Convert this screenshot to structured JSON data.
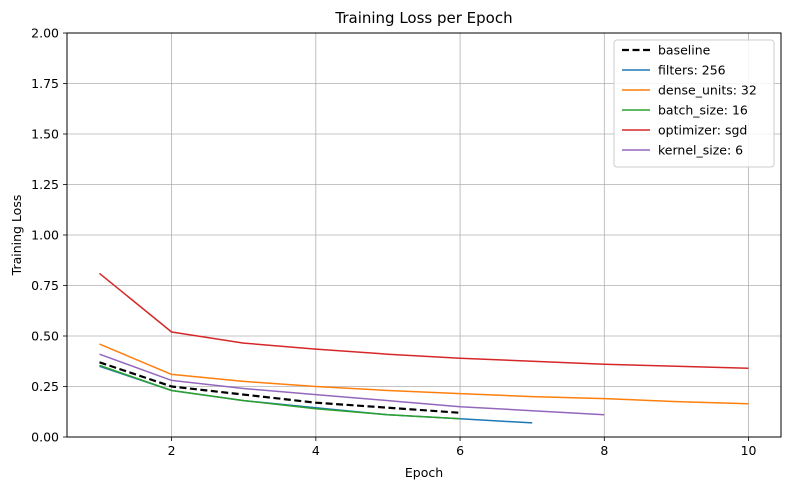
{
  "chart_data": {
    "type": "line",
    "title": "Training Loss per Epoch",
    "xlabel": "Epoch",
    "ylabel": "Training Loss",
    "xlim": [
      0.55,
      10.45
    ],
    "ylim": [
      0,
      2.0
    ],
    "xticks": [
      2,
      4,
      6,
      8,
      10
    ],
    "yticks": [
      0.0,
      0.25,
      0.5,
      0.75,
      1.0,
      1.25,
      1.5,
      1.75,
      2.0
    ],
    "xtick_labels": [
      "2",
      "4",
      "6",
      "8",
      "10"
    ],
    "ytick_labels": [
      "0.00",
      "0.25",
      "0.50",
      "0.75",
      "1.00",
      "1.25",
      "1.50",
      "1.75",
      "2.00"
    ],
    "grid": true,
    "legend_position": "top-right",
    "series": [
      {
        "name": "baseline",
        "color": "#000000",
        "dashed": true,
        "x": [
          1,
          2,
          3,
          4,
          5,
          6
        ],
        "y": [
          0.37,
          0.25,
          0.21,
          0.17,
          0.145,
          0.12
        ]
      },
      {
        "name": "filters: 256",
        "color": "#1f77b4",
        "dashed": false,
        "x": [
          1,
          2,
          3,
          4,
          5,
          6,
          7
        ],
        "y": [
          0.35,
          0.23,
          0.18,
          0.145,
          0.11,
          0.09,
          0.07
        ]
      },
      {
        "name": "dense_units: 32",
        "color": "#ff7f0e",
        "dashed": false,
        "x": [
          1,
          2,
          3,
          4,
          5,
          6,
          7,
          8,
          9,
          10
        ],
        "y": [
          0.46,
          0.31,
          0.275,
          0.25,
          0.23,
          0.215,
          0.2,
          0.19,
          0.175,
          0.165
        ]
      },
      {
        "name": "batch_size: 16",
        "color": "#2ca02c",
        "dashed": false,
        "x": [
          1,
          2,
          3,
          4,
          5,
          6
        ],
        "y": [
          0.355,
          0.23,
          0.18,
          0.14,
          0.11,
          0.09
        ]
      },
      {
        "name": "optimizer: sgd",
        "color": "#d62728",
        "dashed": false,
        "x": [
          1,
          2,
          3,
          4,
          5,
          6,
          7,
          8,
          9,
          10
        ],
        "y": [
          0.81,
          0.52,
          0.465,
          0.435,
          0.41,
          0.39,
          0.375,
          0.36,
          0.35,
          0.34
        ]
      },
      {
        "name": "kernel_size: 6",
        "color": "#9467bd",
        "dashed": false,
        "x": [
          1,
          2,
          3,
          4,
          5,
          6,
          7,
          8
        ],
        "y": [
          0.41,
          0.28,
          0.24,
          0.21,
          0.18,
          0.15,
          0.13,
          0.11
        ]
      }
    ]
  }
}
